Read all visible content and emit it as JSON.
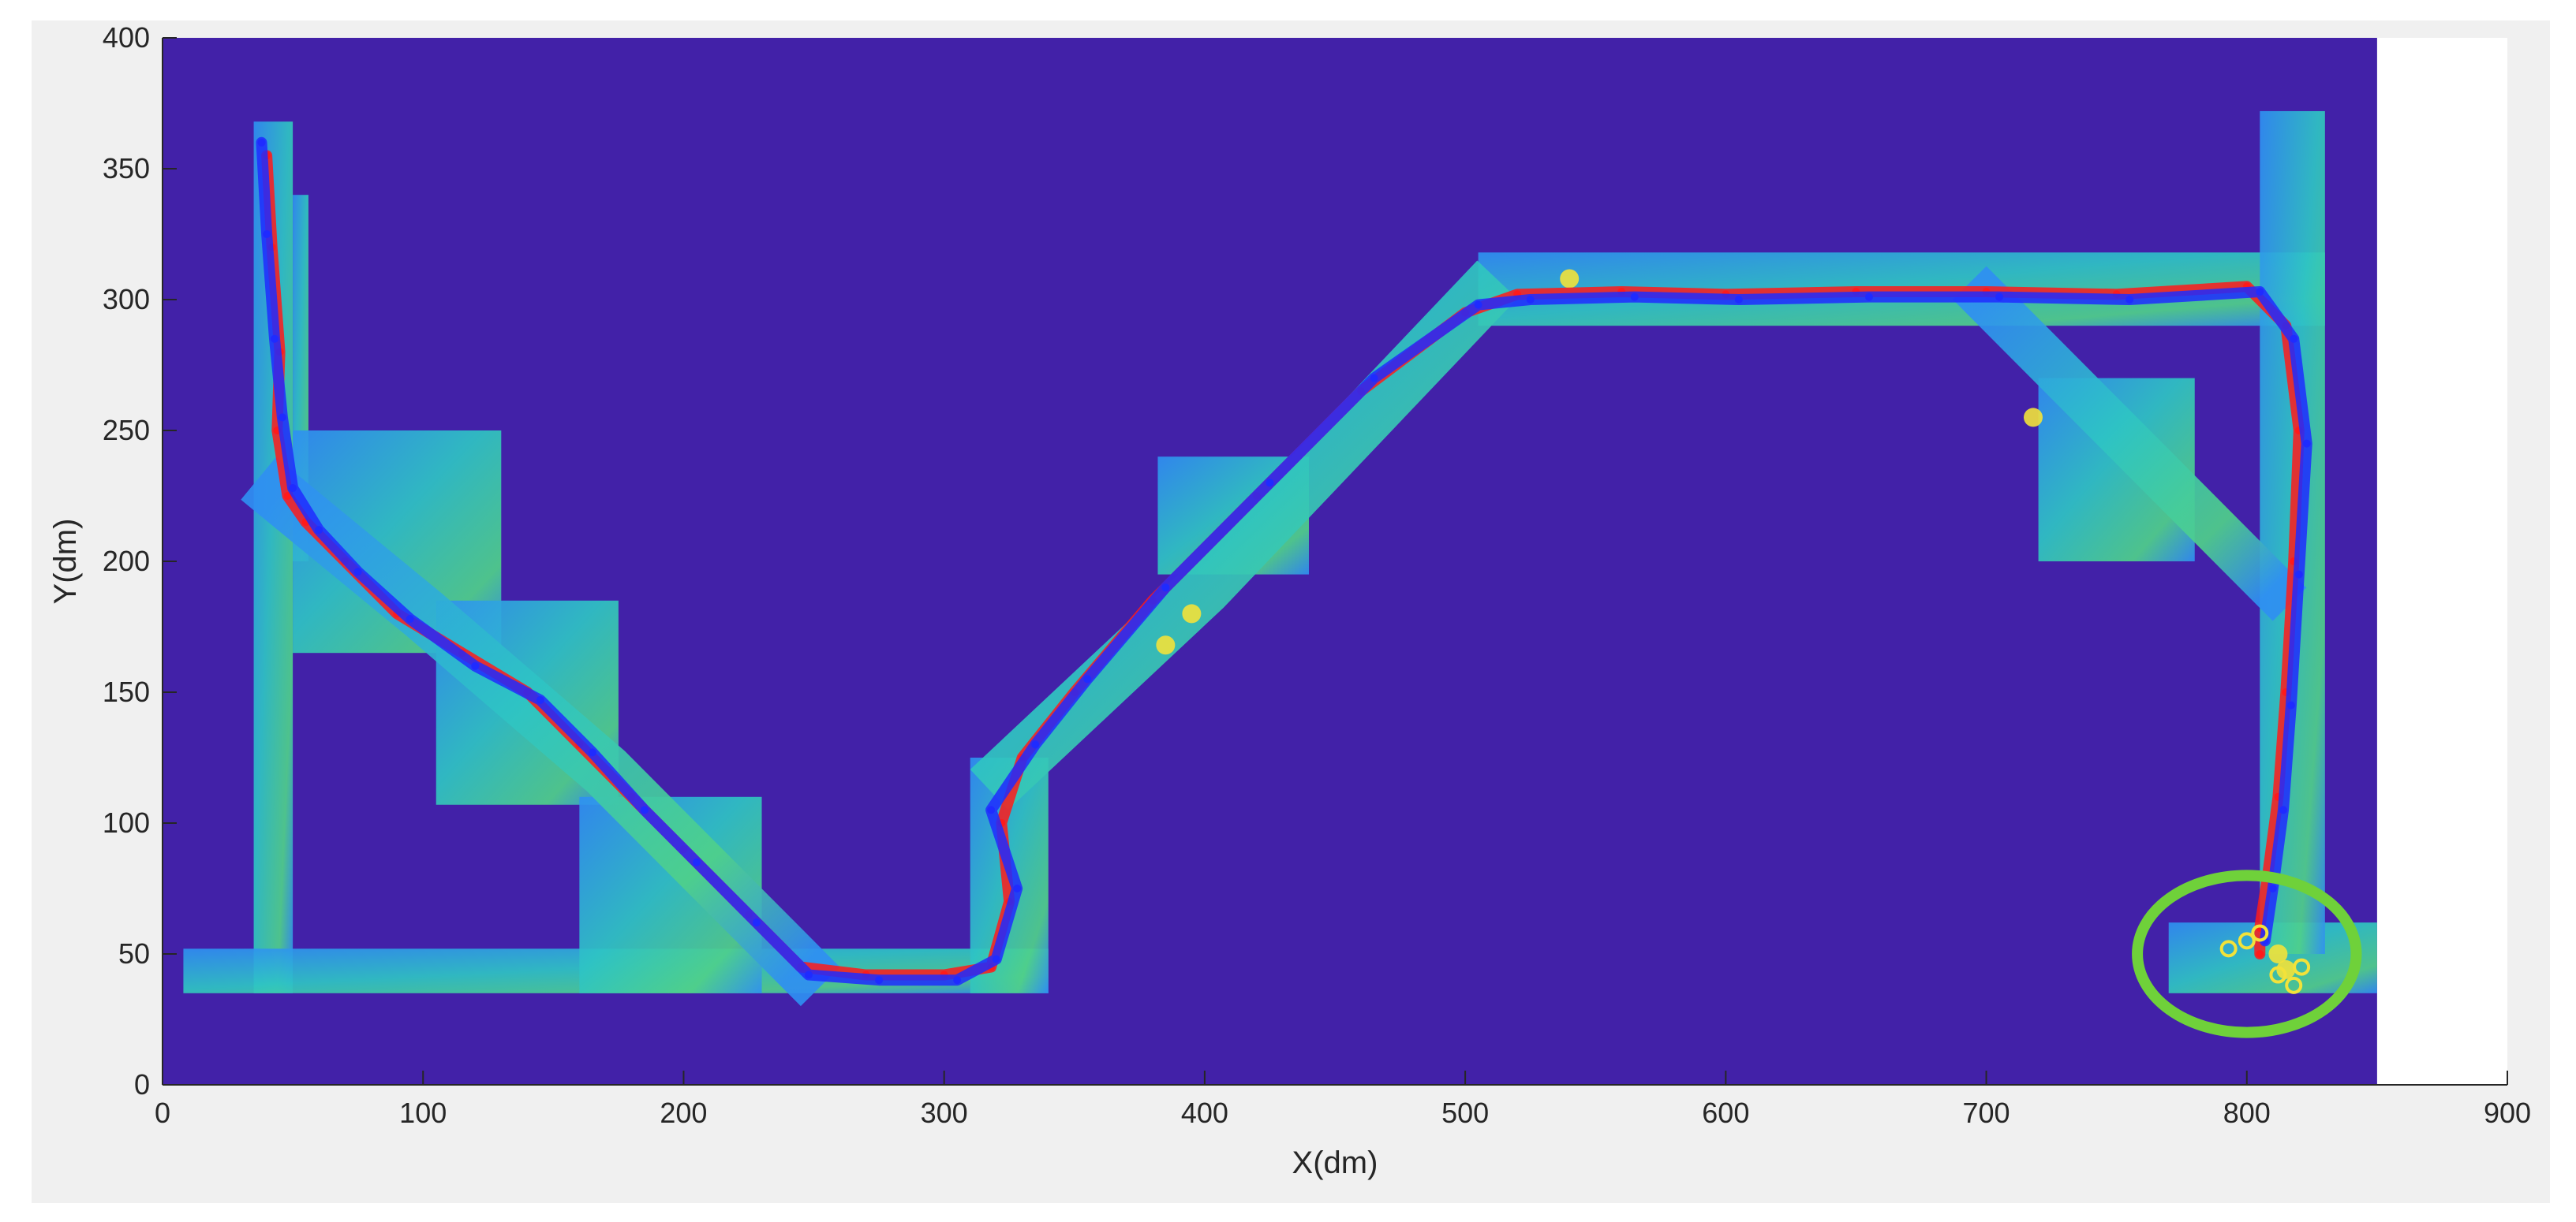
{
  "chart_data": {
    "type": "scatter",
    "title": "",
    "xlabel": "X(dm)",
    "ylabel": "Y(dm)",
    "xlim": [
      0,
      900
    ],
    "ylim": [
      0,
      400
    ],
    "xticks": [
      0,
      100,
      200,
      300,
      400,
      500,
      600,
      700,
      800,
      900
    ],
    "yticks": [
      0,
      50,
      100,
      150,
      200,
      250,
      300,
      350,
      400
    ],
    "grid": false,
    "legend": "none",
    "map_extent_x": [
      0,
      850
    ],
    "colors": {
      "background": "#4221a8",
      "corridor_low": "#2f8ff2",
      "corridor_mid": "#2ec4c4",
      "corridor_high": "#4fd08a",
      "hot": "#f2e23a",
      "series_red": "#ff1a1a",
      "series_blue": "#1f2bff",
      "highlight_circle": "#6fd13a"
    },
    "corridors": [
      {
        "x": [
          35,
          50
        ],
        "y": [
          35,
          368
        ]
      },
      {
        "x": [
          8,
          340
        ],
        "y": [
          35,
          52
        ]
      },
      {
        "x": [
          50,
          56
        ],
        "y": [
          200,
          340
        ]
      },
      {
        "x": [
          50,
          130
        ],
        "y": [
          165,
          250
        ]
      },
      {
        "x": [
          105,
          175
        ],
        "y": [
          107,
          185
        ]
      },
      {
        "x": [
          160,
          230
        ],
        "y": [
          35,
          110
        ]
      },
      {
        "x": [
          310,
          340
        ],
        "y": [
          35,
          125
        ]
      },
      {
        "x": [
          382,
          440
        ],
        "y": [
          195,
          240
        ]
      },
      {
        "x": [
          505,
          830
        ],
        "y": [
          290,
          318
        ]
      },
      {
        "x": [
          770,
          850
        ],
        "y": [
          35,
          62
        ]
      },
      {
        "x": [
          805,
          830
        ],
        "y": [
          50,
          372
        ]
      },
      {
        "x": [
          720,
          780
        ],
        "y": [
          200,
          270
        ]
      }
    ],
    "series": [
      {
        "color": "#ff1a1a",
        "x": [
          40,
          42,
          45,
          44,
          48,
          55,
          70,
          90,
          115,
          140,
          160,
          180,
          200,
          225,
          245,
          270,
          300,
          318,
          325,
          322,
          330,
          350,
          380,
          420,
          460,
          500,
          520,
          560,
          600,
          650,
          700,
          750,
          800,
          815,
          820,
          818,
          815,
          812,
          808,
          805,
          805
        ],
        "y": [
          355,
          320,
          280,
          250,
          225,
          215,
          200,
          180,
          165,
          150,
          130,
          110,
          90,
          65,
          45,
          42,
          42,
          45,
          70,
          100,
          125,
          150,
          185,
          225,
          265,
          295,
          302,
          303,
          302,
          303,
          303,
          302,
          305,
          290,
          250,
          200,
          150,
          110,
          80,
          60,
          50
        ]
      },
      {
        "color": "#1f2bff",
        "x": [
          38,
          40,
          43,
          46,
          50,
          60,
          75,
          95,
          120,
          145,
          165,
          185,
          205,
          228,
          248,
          275,
          305,
          320,
          328,
          318,
          335,
          355,
          385,
          425,
          465,
          505,
          525,
          565,
          605,
          655,
          705,
          755,
          805,
          818,
          823,
          820,
          817,
          814,
          810,
          807
        ],
        "y": [
          360,
          325,
          285,
          255,
          228,
          212,
          196,
          178,
          160,
          147,
          127,
          105,
          85,
          62,
          42,
          40,
          40,
          48,
          75,
          105,
          130,
          155,
          190,
          230,
          270,
          298,
          300,
          301,
          300,
          301,
          301,
          300,
          303,
          285,
          245,
          195,
          145,
          105,
          75,
          55
        ]
      }
    ],
    "endpoints": [
      {
        "x": 793,
        "y": 52
      },
      {
        "x": 800,
        "y": 55
      },
      {
        "x": 805,
        "y": 58
      },
      {
        "x": 812,
        "y": 42
      },
      {
        "x": 818,
        "y": 38
      },
      {
        "x": 821,
        "y": 45
      }
    ],
    "highlight_circle": {
      "cx": 800,
      "cy": 50,
      "rx": 42,
      "ry": 30
    }
  }
}
